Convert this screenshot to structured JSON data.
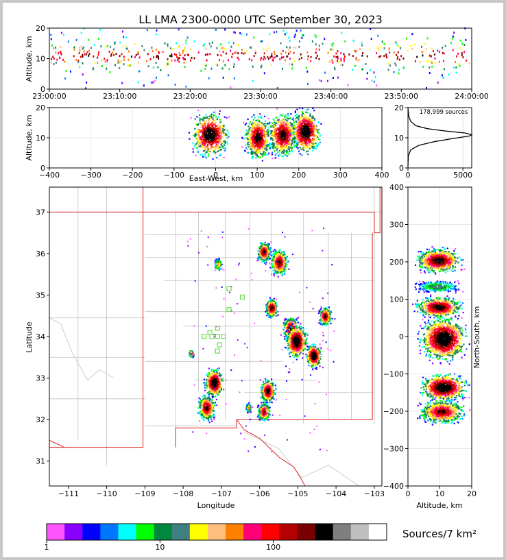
{
  "title": "LL LMA 2300-0000 UTC September 30, 2023",
  "colors": {
    "bin_colors": [
      "#ff55ff",
      "#8800ff",
      "#0000ff",
      "#0077ff",
      "#00ffff",
      "#00ff00",
      "#00883f",
      "#3f7f7f",
      "#ffff00",
      "#ffbf7f",
      "#ff7f00",
      "#ff0077",
      "#ff0000",
      "#b40000",
      "#780000",
      "#000000",
      "#7f7f7f",
      "#bfbfbf",
      "#ffffff"
    ],
    "state_border": "#dd2222",
    "county_lines": "#c0c0c0",
    "station_marker": "#66dd44"
  },
  "chart_data": [
    {
      "id": "time_height",
      "type": "heatmap",
      "title": "LL LMA 2300-0000 UTC September 30, 2023",
      "xlabel": "",
      "ylabel": "Altitude, km",
      "x_ticks": [
        "23:00:00",
        "23:10:00",
        "23:20:00",
        "23:30:00",
        "23:40:00",
        "23:50:00",
        "24:00:00"
      ],
      "y_ticks": [
        "0",
        "10",
        "20"
      ],
      "xlim": [
        "23:00:00",
        "24:00:00"
      ],
      "ylim": [
        0,
        20
      ],
      "density_profile": [
        {
          "altitude_km": 1,
          "level": 0.02
        },
        {
          "altitude_km": 5,
          "level": 0.1
        },
        {
          "altitude_km": 8,
          "level": 0.45
        },
        {
          "altitude_km": 10,
          "level": 0.9
        },
        {
          "altitude_km": 11,
          "level": 1.0
        },
        {
          "altitude_km": 13,
          "level": 0.6
        },
        {
          "altitude_km": 16,
          "level": 0.2
        },
        {
          "altitude_km": 19,
          "level": 0.05
        }
      ]
    },
    {
      "id": "ew_height",
      "type": "heatmap",
      "xlabel": "East-West, km",
      "ylabel": "Altitude, km",
      "x_ticks": [
        "−400",
        "−300",
        "−200",
        "−100",
        "0",
        "100",
        "200",
        "300",
        "400"
      ],
      "y_ticks": [
        "0",
        "10",
        "20"
      ],
      "xlim": [
        -400,
        400
      ],
      "ylim": [
        0,
        20
      ],
      "clusters": [
        {
          "east_west_km": -15,
          "altitude_km": 11,
          "width_km": 55,
          "peak": 1.0
        },
        {
          "east_west_km": 100,
          "altitude_km": 10,
          "width_km": 40,
          "peak": 0.9
        },
        {
          "east_west_km": 160,
          "altitude_km": 11,
          "width_km": 45,
          "peak": 0.9
        },
        {
          "east_west_km": 215,
          "altitude_km": 12,
          "width_km": 45,
          "peak": 1.0
        }
      ]
    },
    {
      "id": "altitude_histogram",
      "type": "line",
      "annotation": "178,999 sources",
      "x_ticks": [
        "0",
        "5000"
      ],
      "y_ticks": [
        "0",
        "10",
        "20"
      ],
      "xlim": [
        0,
        5800
      ],
      "ylim": [
        0,
        20
      ],
      "points": [
        [
          0,
          0.5
        ],
        [
          10,
          2
        ],
        [
          40,
          4
        ],
        [
          250,
          6
        ],
        [
          1000,
          7.5
        ],
        [
          2500,
          8.8
        ],
        [
          4200,
          9.8
        ],
        [
          5600,
          10.6
        ],
        [
          5800,
          11
        ],
        [
          5200,
          11.6
        ],
        [
          3500,
          12.2
        ],
        [
          1800,
          13
        ],
        [
          700,
          14
        ],
        [
          250,
          15.5
        ],
        [
          80,
          17
        ],
        [
          20,
          19
        ],
        [
          5,
          20
        ]
      ]
    },
    {
      "id": "plan_view",
      "type": "heatmap",
      "xlabel": "Longitude",
      "ylabel": "Latitude",
      "x_ticks": [
        "−111",
        "−110",
        "−109",
        "−108",
        "−107",
        "−106",
        "−105",
        "−104",
        "−103"
      ],
      "y_ticks": [
        "31",
        "32",
        "33",
        "34",
        "35",
        "36",
        "37"
      ],
      "xlim": [
        -111.5,
        -102.8
      ],
      "ylim": [
        30.4,
        37.6
      ],
      "storms": [
        {
          "lon": -105.9,
          "lat": 36.05,
          "size_deg": 0.22,
          "peak": 0.85
        },
        {
          "lon": -105.5,
          "lat": 35.8,
          "size_deg": 0.28,
          "peak": 0.85
        },
        {
          "lon": -107.1,
          "lat": 35.75,
          "size_deg": 0.12,
          "peak": 0.6
        },
        {
          "lon": -105.7,
          "lat": 34.7,
          "size_deg": 0.2,
          "peak": 0.9
        },
        {
          "lon": -105.2,
          "lat": 34.2,
          "size_deg": 0.25,
          "peak": 0.9
        },
        {
          "lon": -105.05,
          "lat": 33.9,
          "size_deg": 0.35,
          "peak": 1.0
        },
        {
          "lon": -104.6,
          "lat": 33.55,
          "size_deg": 0.25,
          "peak": 1.0
        },
        {
          "lon": -104.3,
          "lat": 34.5,
          "size_deg": 0.2,
          "peak": 0.85
        },
        {
          "lon": -107.2,
          "lat": 32.9,
          "size_deg": 0.3,
          "peak": 1.0
        },
        {
          "lon": -107.4,
          "lat": 32.3,
          "size_deg": 0.28,
          "peak": 0.85
        },
        {
          "lon": -105.8,
          "lat": 32.7,
          "size_deg": 0.25,
          "peak": 0.9
        },
        {
          "lon": -105.9,
          "lat": 32.2,
          "size_deg": 0.2,
          "peak": 0.8
        },
        {
          "lon": -106.3,
          "lat": 32.3,
          "size_deg": 0.1,
          "peak": 0.6
        },
        {
          "lon": -107.8,
          "lat": 33.6,
          "size_deg": 0.08,
          "peak": 0.7
        }
      ],
      "stations": [
        [
          -106.8,
          35.15
        ],
        [
          -106.45,
          34.95
        ],
        [
          -106.8,
          34.65
        ],
        [
          -107.1,
          34.2
        ],
        [
          -107.3,
          34.1
        ],
        [
          -107.45,
          34.0
        ],
        [
          -107.25,
          34.0
        ],
        [
          -107.1,
          34.0
        ],
        [
          -106.95,
          34.0
        ],
        [
          -107.05,
          33.8
        ],
        [
          -107.1,
          33.65
        ]
      ]
    },
    {
      "id": "ns_height",
      "type": "heatmap",
      "xlabel": "Altitude, km",
      "ylabel": "North-South, km",
      "x_ticks": [
        "0",
        "10",
        "20"
      ],
      "y_ticks": [
        "−400",
        "−300",
        "−200",
        "−100",
        "0",
        "100",
        "200",
        "300",
        "400"
      ],
      "xlim": [
        0,
        20
      ],
      "ylim": [
        -400,
        400
      ],
      "clusters": [
        {
          "north_south_km": 205,
          "altitude_km": 9.5,
          "height_km": 40,
          "peak": 0.9
        },
        {
          "north_south_km": 135,
          "altitude_km": 9,
          "height_km": 20,
          "peak": 0.4
        },
        {
          "north_south_km": 80,
          "altitude_km": 9.5,
          "height_km": 35,
          "peak": 0.9
        },
        {
          "north_south_km": -5,
          "altitude_km": 11,
          "height_km": 70,
          "peak": 1.0
        },
        {
          "north_south_km": -135,
          "altitude_km": 11,
          "height_km": 45,
          "peak": 1.0
        },
        {
          "north_south_km": -200,
          "altitude_km": 10.5,
          "height_km": 40,
          "peak": 0.8
        }
      ]
    }
  ],
  "colorbar": {
    "label": "Sources/7 km²",
    "tick_labels": [
      "1",
      "10",
      "100"
    ]
  }
}
